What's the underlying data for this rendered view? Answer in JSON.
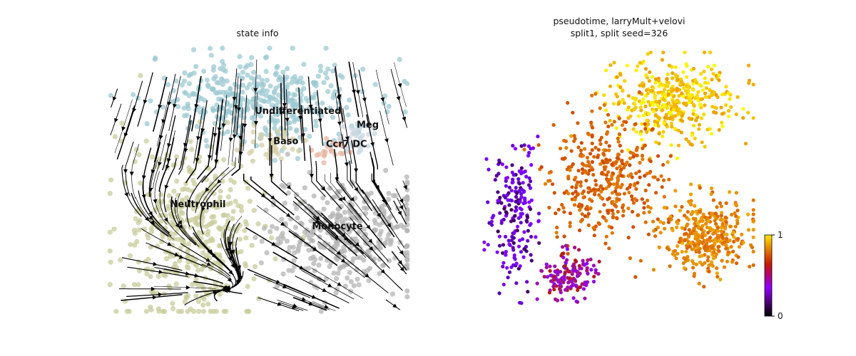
{
  "chart_data": [
    {
      "type": "scatter",
      "title": "state info",
      "xlabel": "",
      "ylabel": "",
      "grid": false,
      "overlay": "velocity stream lines with arrowheads",
      "clusters": [
        {
          "name": "Undifferentiated",
          "color": "#9ecad3",
          "center": [
            0.5,
            0.8
          ],
          "spread": [
            0.32,
            0.14
          ]
        },
        {
          "name": "Meg",
          "color": "#c7d6e0",
          "center": [
            0.82,
            0.65
          ],
          "spread": [
            0.06,
            0.06
          ]
        },
        {
          "name": "Baso",
          "color": "#d6cfa6",
          "center": [
            0.55,
            0.62
          ],
          "spread": [
            0.08,
            0.06
          ]
        },
        {
          "name": "Ccr7 DC",
          "color": "#e8b4a0",
          "center": [
            0.74,
            0.6
          ],
          "spread": [
            0.05,
            0.04
          ]
        },
        {
          "name": "Neutrophil",
          "color": "#c8cc9b",
          "center": [
            0.28,
            0.3
          ],
          "spread": [
            0.2,
            0.3
          ]
        },
        {
          "name": "Monocyte",
          "color": "#b4b4b4",
          "center": [
            0.78,
            0.3
          ],
          "spread": [
            0.25,
            0.17
          ]
        }
      ],
      "labels": [
        {
          "text": "Undifferentiated",
          "cluster": "Undifferentiated"
        },
        {
          "text": "Meg",
          "cluster": "Meg"
        },
        {
          "text": "Baso",
          "cluster": "Baso"
        },
        {
          "text": "Ccr7 DC",
          "cluster": "Ccr7 DC"
        },
        {
          "text": "Neutrophil",
          "cluster": "Neutrophil"
        },
        {
          "text": "Monocyte",
          "cluster": "Monocyte"
        }
      ]
    },
    {
      "type": "scatter",
      "title": "pseudotime, larryMult+velovi\nsplit1, split seed=326",
      "xlabel": "",
      "ylabel": "",
      "grid": false,
      "color_by": "pseudotime",
      "colormap": "gnuplot",
      "colorbar": {
        "min": 0,
        "max": 1,
        "ticks": [
          "0",
          "1"
        ]
      },
      "regions": [
        {
          "name": "top-right",
          "pseudotime": [
            0.85,
            1.0
          ]
        },
        {
          "name": "center",
          "pseudotime": [
            0.65,
            0.8
          ]
        },
        {
          "name": "right-lobe",
          "pseudotime": [
            0.72,
            0.88
          ]
        },
        {
          "name": "left-strands",
          "pseudotime": [
            0.05,
            0.3
          ]
        },
        {
          "name": "bottom-middle",
          "pseudotime": [
            0.3,
            0.5
          ]
        }
      ]
    }
  ],
  "colors": {
    "Undifferentiated": "#9ecad3",
    "Neutrophil": "#c8cc9b",
    "Monocyte": "#b4b4b4",
    "stream": "#000000"
  }
}
